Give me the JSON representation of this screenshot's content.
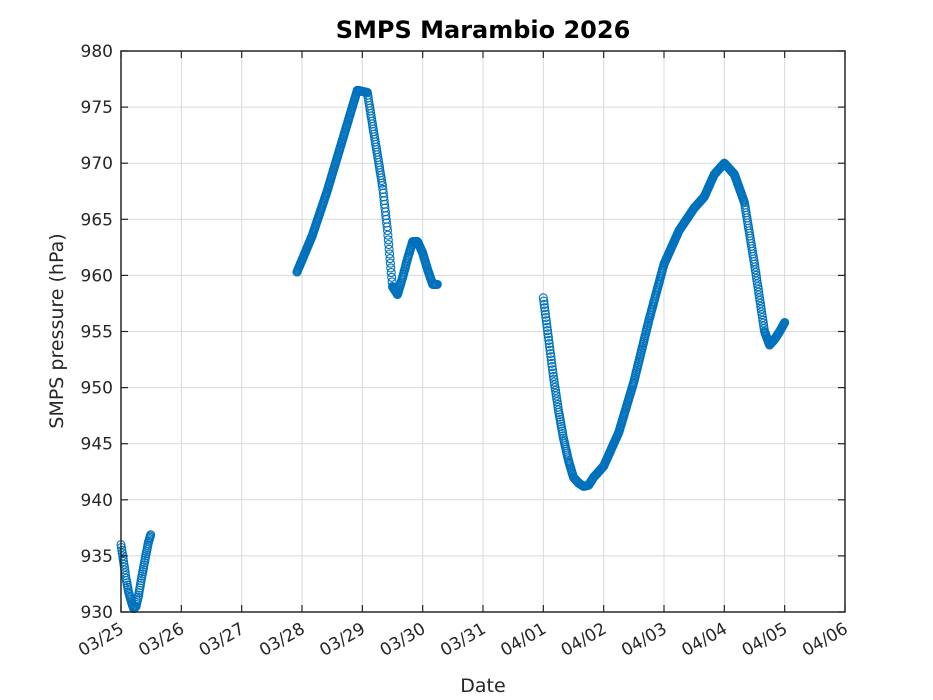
{
  "chart_data": {
    "type": "scatter",
    "title": "SMPS Marambio 2026",
    "xlabel": "Date",
    "ylabel": "SMPS pressure (hPa)",
    "xlim": [
      "2026-03-25",
      "2026-04-06"
    ],
    "ylim": [
      930,
      980
    ],
    "xticks": [
      "03/25",
      "03/26",
      "03/27",
      "03/28",
      "03/29",
      "03/30",
      "03/31",
      "04/01",
      "04/02",
      "04/03",
      "04/04",
      "04/05",
      "04/06"
    ],
    "yticks": [
      930,
      935,
      940,
      945,
      950,
      955,
      960,
      965,
      970,
      975,
      980
    ],
    "grid": true,
    "marker": "circle-open",
    "color": "#0072BD",
    "series": [
      {
        "name": "",
        "x": [
          "2026-03-25 00:00",
          "2026-03-25 01:00",
          "2026-03-25 02:00",
          "2026-03-25 03:00",
          "2026-03-25 04:00",
          "2026-03-25 05:00",
          "2026-03-25 06:00",
          "2026-03-25 07:00",
          "2026-03-25 08:00",
          "2026-03-25 09:00",
          "2026-03-25 10:00",
          "2026-03-25 11:00",
          "2026-03-25 12:00",
          "2026-03-27 22:00",
          "2026-03-28 04:00",
          "2026-03-28 10:00",
          "2026-03-28 16:00",
          "2026-03-28 20:00",
          "2026-03-28 22:00",
          "2026-03-29 02:00",
          "2026-03-29 04:00",
          "2026-03-29 08:00",
          "2026-03-29 10:00",
          "2026-03-29 12:00",
          "2026-03-29 14:00",
          "2026-03-29 16:00",
          "2026-03-29 18:00",
          "2026-03-29 20:00",
          "2026-03-29 22:00",
          "2026-03-30 00:00",
          "2026-03-30 02:00",
          "2026-03-30 04:00",
          "2026-03-30 06:00",
          "2026-04-01 00:00",
          "2026-04-01 02:00",
          "2026-04-01 04:00",
          "2026-04-01 06:00",
          "2026-04-01 08:00",
          "2026-04-01 10:00",
          "2026-04-01 12:00",
          "2026-04-01 14:00",
          "2026-04-01 16:00",
          "2026-04-01 18:00",
          "2026-04-01 20:00",
          "2026-04-02 00:00",
          "2026-04-02 06:00",
          "2026-04-02 12:00",
          "2026-04-02 18:00",
          "2026-04-03 00:00",
          "2026-04-03 06:00",
          "2026-04-03 12:00",
          "2026-04-03 16:00",
          "2026-04-03 20:00",
          "2026-04-04 00:00",
          "2026-04-04 04:00",
          "2026-04-04 08:00",
          "2026-04-04 12:00",
          "2026-04-04 14:00",
          "2026-04-04 16:00",
          "2026-04-04 18:00",
          "2026-04-04 20:00",
          "2026-04-04 22:00",
          "2026-04-05 00:00"
        ],
        "y": [
          936.0,
          934.5,
          933.0,
          931.8,
          931.0,
          930.3,
          930.5,
          931.5,
          932.8,
          934.0,
          935.2,
          936.3,
          937.0,
          960.3,
          963.5,
          967.5,
          972.0,
          975.0,
          976.5,
          976.3,
          973.5,
          968.0,
          964.0,
          959.0,
          958.3,
          959.8,
          961.5,
          963.0,
          963.0,
          962.0,
          960.5,
          959.2,
          959.2,
          958.0,
          954.5,
          951.0,
          948.0,
          945.5,
          943.5,
          942.0,
          941.5,
          941.2,
          941.3,
          942.0,
          943.0,
          946.0,
          950.5,
          956.0,
          961.0,
          964.0,
          966.0,
          967.0,
          969.0,
          970.0,
          969.0,
          966.5,
          961.0,
          958.0,
          955.0,
          953.8,
          954.3,
          955.0,
          955.8
        ]
      }
    ]
  }
}
